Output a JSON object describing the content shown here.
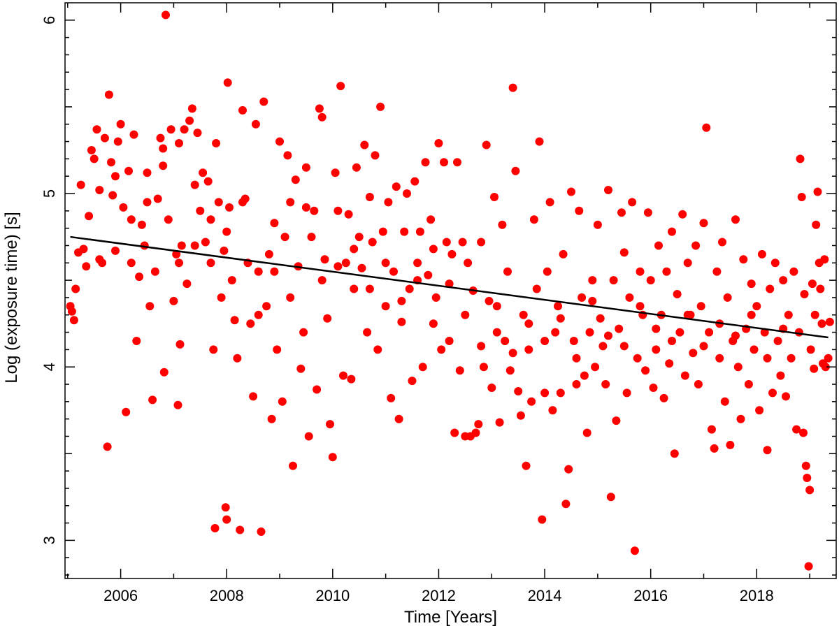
{
  "chart_data": {
    "type": "scatter",
    "xlabel": "Time [Years]",
    "ylabel": "Log (exposure time) [s]",
    "xlim": [
      2004.95,
      2019.5
    ],
    "ylim": [
      2.78,
      6.1
    ],
    "x_ticks": [
      2006,
      2008,
      2010,
      2012,
      2014,
      2016,
      2018
    ],
    "x_tick_labels": [
      "2006",
      "2008",
      "2010",
      "2012",
      "2014",
      "2016",
      "2018"
    ],
    "y_ticks": [
      3,
      4,
      5,
      6
    ],
    "y_tick_labels": [
      "3",
      "4",
      "5",
      "6"
    ],
    "point_color": "#ff0000",
    "fit_color": "#000000",
    "grid": false,
    "legend": "none",
    "fit_line": {
      "x": [
        2005.05,
        2019.35
      ],
      "y": [
        4.75,
        4.17
      ]
    },
    "points": [
      [
        2005.05,
        4.35
      ],
      [
        2005.08,
        4.32
      ],
      [
        2005.12,
        4.27
      ],
      [
        2005.15,
        4.45
      ],
      [
        2005.2,
        4.66
      ],
      [
        2005.25,
        5.05
      ],
      [
        2005.3,
        4.68
      ],
      [
        2005.35,
        4.58
      ],
      [
        2005.4,
        4.87
      ],
      [
        2005.45,
        5.25
      ],
      [
        2005.5,
        5.2
      ],
      [
        2005.55,
        5.37
      ],
      [
        2005.6,
        5.02
      ],
      [
        2005.65,
        4.6
      ],
      [
        2005.7,
        5.32
      ],
      [
        2005.75,
        3.54
      ],
      [
        2005.78,
        5.57
      ],
      [
        2005.82,
        5.18
      ],
      [
        2005.85,
        4.99
      ],
      [
        2005.9,
        4.67
      ],
      [
        2005.95,
        5.3
      ],
      [
        2006.0,
        5.4
      ],
      [
        2006.05,
        4.92
      ],
      [
        2006.1,
        3.74
      ],
      [
        2006.15,
        5.13
      ],
      [
        2006.2,
        4.85
      ],
      [
        2006.25,
        5.34
      ],
      [
        2006.3,
        4.15
      ],
      [
        2006.35,
        4.52
      ],
      [
        2006.4,
        4.82
      ],
      [
        2006.45,
        4.7
      ],
      [
        2006.5,
        5.12
      ],
      [
        2006.55,
        4.35
      ],
      [
        2006.6,
        3.81
      ],
      [
        2006.65,
        4.55
      ],
      [
        2006.7,
        4.97
      ],
      [
        2006.75,
        5.32
      ],
      [
        2006.8,
        5.26
      ],
      [
        2006.82,
        3.97
      ],
      [
        2006.85,
        6.03
      ],
      [
        2006.9,
        4.85
      ],
      [
        2006.95,
        5.37
      ],
      [
        2007.0,
        4.38
      ],
      [
        2007.05,
        4.65
      ],
      [
        2007.08,
        3.78
      ],
      [
        2007.1,
        5.29
      ],
      [
        2007.12,
        4.13
      ],
      [
        2007.15,
        4.7
      ],
      [
        2007.2,
        5.37
      ],
      [
        2007.25,
        4.48
      ],
      [
        2007.3,
        5.42
      ],
      [
        2007.35,
        5.49
      ],
      [
        2007.4,
        4.7
      ],
      [
        2007.45,
        5.35
      ],
      [
        2007.5,
        4.9
      ],
      [
        2007.55,
        5.12
      ],
      [
        2007.6,
        4.72
      ],
      [
        2007.65,
        5.07
      ],
      [
        2007.7,
        4.85
      ],
      [
        2007.75,
        4.1
      ],
      [
        2007.78,
        3.07
      ],
      [
        2007.8,
        5.29
      ],
      [
        2007.85,
        4.95
      ],
      [
        2007.9,
        4.4
      ],
      [
        2007.95,
        4.67
      ],
      [
        2007.98,
        3.19
      ],
      [
        2008.0,
        3.12
      ],
      [
        2008.02,
        5.64
      ],
      [
        2008.05,
        4.92
      ],
      [
        2008.1,
        4.5
      ],
      [
        2008.15,
        4.27
      ],
      [
        2008.2,
        4.05
      ],
      [
        2008.25,
        3.06
      ],
      [
        2008.3,
        5.48
      ],
      [
        2008.35,
        4.97
      ],
      [
        2008.4,
        4.6
      ],
      [
        2008.45,
        4.25
      ],
      [
        2008.5,
        3.83
      ],
      [
        2008.55,
        5.4
      ],
      [
        2008.6,
        4.55
      ],
      [
        2008.65,
        3.05
      ],
      [
        2008.7,
        5.53
      ],
      [
        2008.75,
        4.35
      ],
      [
        2008.8,
        4.65
      ],
      [
        2008.85,
        3.7
      ],
      [
        2008.9,
        4.83
      ],
      [
        2008.95,
        4.1
      ],
      [
        2009.0,
        5.3
      ],
      [
        2009.05,
        3.8
      ],
      [
        2009.1,
        4.75
      ],
      [
        2009.15,
        5.22
      ],
      [
        2009.2,
        4.95
      ],
      [
        2009.25,
        3.43
      ],
      [
        2009.3,
        5.08
      ],
      [
        2009.35,
        4.58
      ],
      [
        2009.4,
        3.99
      ],
      [
        2009.45,
        4.2
      ],
      [
        2009.5,
        5.15
      ],
      [
        2009.55,
        3.6
      ],
      [
        2009.6,
        4.75
      ],
      [
        2009.65,
        4.9
      ],
      [
        2009.7,
        3.87
      ],
      [
        2009.75,
        5.49
      ],
      [
        2009.8,
        5.44
      ],
      [
        2009.85,
        4.62
      ],
      [
        2009.9,
        4.28
      ],
      [
        2009.95,
        3.67
      ],
      [
        2010.0,
        3.48
      ],
      [
        2010.05,
        5.12
      ],
      [
        2010.1,
        4.9
      ],
      [
        2010.15,
        5.62
      ],
      [
        2010.2,
        3.95
      ],
      [
        2010.25,
        4.6
      ],
      [
        2010.3,
        4.88
      ],
      [
        2010.35,
        3.93
      ],
      [
        2010.4,
        4.45
      ],
      [
        2010.45,
        5.15
      ],
      [
        2010.5,
        4.75
      ],
      [
        2010.55,
        4.57
      ],
      [
        2010.6,
        5.28
      ],
      [
        2010.65,
        4.2
      ],
      [
        2010.7,
        4.98
      ],
      [
        2010.75,
        4.72
      ],
      [
        2010.8,
        5.22
      ],
      [
        2010.85,
        4.1
      ],
      [
        2010.9,
        5.5
      ],
      [
        2010.95,
        4.78
      ],
      [
        2011.0,
        4.35
      ],
      [
        2011.05,
        4.95
      ],
      [
        2011.1,
        3.82
      ],
      [
        2011.15,
        4.55
      ],
      [
        2011.2,
        5.04
      ],
      [
        2011.25,
        3.7
      ],
      [
        2011.3,
        4.26
      ],
      [
        2011.35,
        4.78
      ],
      [
        2011.4,
        5.0
      ],
      [
        2011.45,
        4.45
      ],
      [
        2011.5,
        3.92
      ],
      [
        2011.55,
        5.07
      ],
      [
        2011.6,
        4.6
      ],
      [
        2011.65,
        4.78
      ],
      [
        2011.7,
        4.0
      ],
      [
        2011.75,
        5.18
      ],
      [
        2011.8,
        4.53
      ],
      [
        2011.85,
        4.85
      ],
      [
        2011.9,
        4.68
      ],
      [
        2011.95,
        4.4
      ],
      [
        2012.0,
        5.29
      ],
      [
        2012.05,
        4.1
      ],
      [
        2012.1,
        5.18
      ],
      [
        2012.15,
        4.72
      ],
      [
        2012.2,
        4.15
      ],
      [
        2012.25,
        4.65
      ],
      [
        2012.3,
        3.62
      ],
      [
        2012.35,
        5.18
      ],
      [
        2012.4,
        3.98
      ],
      [
        2012.45,
        4.72
      ],
      [
        2012.5,
        3.6
      ],
      [
        2012.55,
        4.6
      ],
      [
        2012.6,
        3.6
      ],
      [
        2012.65,
        4.44
      ],
      [
        2012.7,
        3.62
      ],
      [
        2012.75,
        3.67
      ],
      [
        2012.8,
        4.72
      ],
      [
        2012.85,
        4.0
      ],
      [
        2012.9,
        5.28
      ],
      [
        2012.95,
        4.38
      ],
      [
        2013.0,
        3.88
      ],
      [
        2013.05,
        4.98
      ],
      [
        2013.1,
        4.2
      ],
      [
        2013.15,
        3.68
      ],
      [
        2013.2,
        4.82
      ],
      [
        2013.25,
        4.15
      ],
      [
        2013.3,
        4.55
      ],
      [
        2013.35,
        3.98
      ],
      [
        2013.4,
        5.61
      ],
      [
        2013.45,
        5.13
      ],
      [
        2013.5,
        3.86
      ],
      [
        2013.55,
        3.72
      ],
      [
        2013.6,
        4.3
      ],
      [
        2013.65,
        3.43
      ],
      [
        2013.7,
        4.1
      ],
      [
        2013.75,
        3.8
      ],
      [
        2013.8,
        4.85
      ],
      [
        2013.85,
        4.45
      ],
      [
        2013.9,
        5.3
      ],
      [
        2013.95,
        3.12
      ],
      [
        2014.0,
        3.85
      ],
      [
        2014.05,
        4.55
      ],
      [
        2014.1,
        4.95
      ],
      [
        2014.15,
        3.75
      ],
      [
        2014.2,
        4.2
      ],
      [
        2014.25,
        4.35
      ],
      [
        2014.3,
        3.85
      ],
      [
        2014.35,
        4.65
      ],
      [
        2014.4,
        3.21
      ],
      [
        2014.45,
        3.41
      ],
      [
        2014.5,
        5.01
      ],
      [
        2014.55,
        4.15
      ],
      [
        2014.6,
        3.9
      ],
      [
        2014.65,
        4.9
      ],
      [
        2014.7,
        4.4
      ],
      [
        2014.75,
        3.95
      ],
      [
        2014.8,
        3.62
      ],
      [
        2014.85,
        4.2
      ],
      [
        2014.9,
        4.5
      ],
      [
        2014.95,
        4.0
      ],
      [
        2015.0,
        4.82
      ],
      [
        2015.05,
        4.28
      ],
      [
        2015.1,
        4.12
      ],
      [
        2015.15,
        3.9
      ],
      [
        2015.2,
        5.02
      ],
      [
        2015.25,
        3.25
      ],
      [
        2015.3,
        4.5
      ],
      [
        2015.35,
        3.69
      ],
      [
        2015.4,
        4.22
      ],
      [
        2015.45,
        4.89
      ],
      [
        2015.5,
        4.66
      ],
      [
        2015.55,
        3.85
      ],
      [
        2015.6,
        4.4
      ],
      [
        2015.65,
        4.95
      ],
      [
        2015.7,
        2.94
      ],
      [
        2015.75,
        4.05
      ],
      [
        2015.8,
        4.55
      ],
      [
        2015.85,
        4.3
      ],
      [
        2015.9,
        3.98
      ],
      [
        2015.95,
        4.89
      ],
      [
        2016.0,
        4.5
      ],
      [
        2016.05,
        3.88
      ],
      [
        2016.1,
        4.1
      ],
      [
        2016.15,
        4.7
      ],
      [
        2016.2,
        4.3
      ],
      [
        2016.25,
        3.82
      ],
      [
        2016.3,
        4.55
      ],
      [
        2016.35,
        4.02
      ],
      [
        2016.4,
        4.78
      ],
      [
        2016.45,
        3.5
      ],
      [
        2016.5,
        4.42
      ],
      [
        2016.55,
        4.2
      ],
      [
        2016.6,
        4.88
      ],
      [
        2016.65,
        3.95
      ],
      [
        2016.7,
        4.6
      ],
      [
        2016.75,
        4.3
      ],
      [
        2016.8,
        4.08
      ],
      [
        2016.85,
        4.7
      ],
      [
        2016.9,
        3.9
      ],
      [
        2016.95,
        4.35
      ],
      [
        2017.0,
        4.83
      ],
      [
        2017.05,
        5.38
      ],
      [
        2017.1,
        4.2
      ],
      [
        2017.15,
        3.64
      ],
      [
        2017.2,
        3.53
      ],
      [
        2017.25,
        4.55
      ],
      [
        2017.3,
        4.05
      ],
      [
        2017.35,
        4.72
      ],
      [
        2017.4,
        3.8
      ],
      [
        2017.45,
        4.4
      ],
      [
        2017.5,
        3.55
      ],
      [
        2017.55,
        4.15
      ],
      [
        2017.6,
        4.85
      ],
      [
        2017.65,
        4.0
      ],
      [
        2017.7,
        3.7
      ],
      [
        2017.75,
        4.62
      ],
      [
        2017.8,
        4.22
      ],
      [
        2017.85,
        3.9
      ],
      [
        2017.9,
        4.48
      ],
      [
        2017.95,
        4.1
      ],
      [
        2018.0,
        4.35
      ],
      [
        2018.05,
        3.75
      ],
      [
        2018.1,
        4.65
      ],
      [
        2018.15,
        4.2
      ],
      [
        2018.2,
        3.52
      ],
      [
        2018.25,
        4.45
      ],
      [
        2018.3,
        3.85
      ],
      [
        2018.35,
        4.6
      ],
      [
        2018.4,
        4.15
      ],
      [
        2018.45,
        3.95
      ],
      [
        2018.5,
        4.5
      ],
      [
        2018.55,
        3.83
      ],
      [
        2018.6,
        4.3
      ],
      [
        2018.65,
        4.05
      ],
      [
        2018.7,
        4.55
      ],
      [
        2018.75,
        3.64
      ],
      [
        2018.8,
        4.2
      ],
      [
        2018.82,
        5.2
      ],
      [
        2018.85,
        4.98
      ],
      [
        2018.88,
        3.62
      ],
      [
        2018.9,
        4.42
      ],
      [
        2018.93,
        3.43
      ],
      [
        2018.95,
        3.36
      ],
      [
        2018.98,
        2.85
      ],
      [
        2019.0,
        3.29
      ],
      [
        2019.02,
        4.1
      ],
      [
        2019.05,
        4.48
      ],
      [
        2019.08,
        3.99
      ],
      [
        2019.1,
        4.3
      ],
      [
        2019.12,
        4.82
      ],
      [
        2019.15,
        5.01
      ],
      [
        2019.18,
        4.6
      ],
      [
        2019.2,
        4.45
      ],
      [
        2019.23,
        4.25
      ],
      [
        2019.25,
        4.02
      ],
      [
        2019.28,
        4.62
      ],
      [
        2019.3,
        4.0
      ],
      [
        2019.35,
        4.05
      ],
      [
        2019.38,
        4.26
      ],
      [
        2005.6,
        4.62
      ],
      [
        2005.9,
        5.1
      ],
      [
        2006.2,
        4.6
      ],
      [
        2006.5,
        4.95
      ],
      [
        2006.8,
        5.16
      ],
      [
        2007.1,
        4.6
      ],
      [
        2007.4,
        5.05
      ],
      [
        2007.7,
        4.6
      ],
      [
        2008.0,
        4.78
      ],
      [
        2008.3,
        4.95
      ],
      [
        2008.6,
        4.3
      ],
      [
        2008.9,
        4.55
      ],
      [
        2009.2,
        4.4
      ],
      [
        2009.5,
        4.92
      ],
      [
        2009.8,
        4.5
      ],
      [
        2010.1,
        4.58
      ],
      [
        2010.4,
        4.68
      ],
      [
        2010.7,
        4.45
      ],
      [
        2011.0,
        4.6
      ],
      [
        2011.3,
        4.38
      ],
      [
        2011.6,
        4.5
      ],
      [
        2011.9,
        4.25
      ],
      [
        2012.2,
        4.48
      ],
      [
        2012.5,
        4.3
      ],
      [
        2012.8,
        4.12
      ],
      [
        2013.1,
        4.35
      ],
      [
        2013.4,
        4.08
      ],
      [
        2013.7,
        4.25
      ],
      [
        2014.0,
        4.15
      ],
      [
        2014.3,
        4.28
      ],
      [
        2014.6,
        4.05
      ],
      [
        2014.9,
        4.38
      ],
      [
        2015.2,
        4.18
      ],
      [
        2015.5,
        4.12
      ],
      [
        2015.8,
        4.35
      ],
      [
        2016.1,
        4.22
      ],
      [
        2016.4,
        4.15
      ],
      [
        2016.7,
        4.3
      ],
      [
        2017.0,
        4.12
      ],
      [
        2017.3,
        4.25
      ],
      [
        2017.6,
        4.18
      ],
      [
        2017.9,
        4.3
      ],
      [
        2018.2,
        4.05
      ],
      [
        2018.5,
        4.22
      ]
    ]
  }
}
